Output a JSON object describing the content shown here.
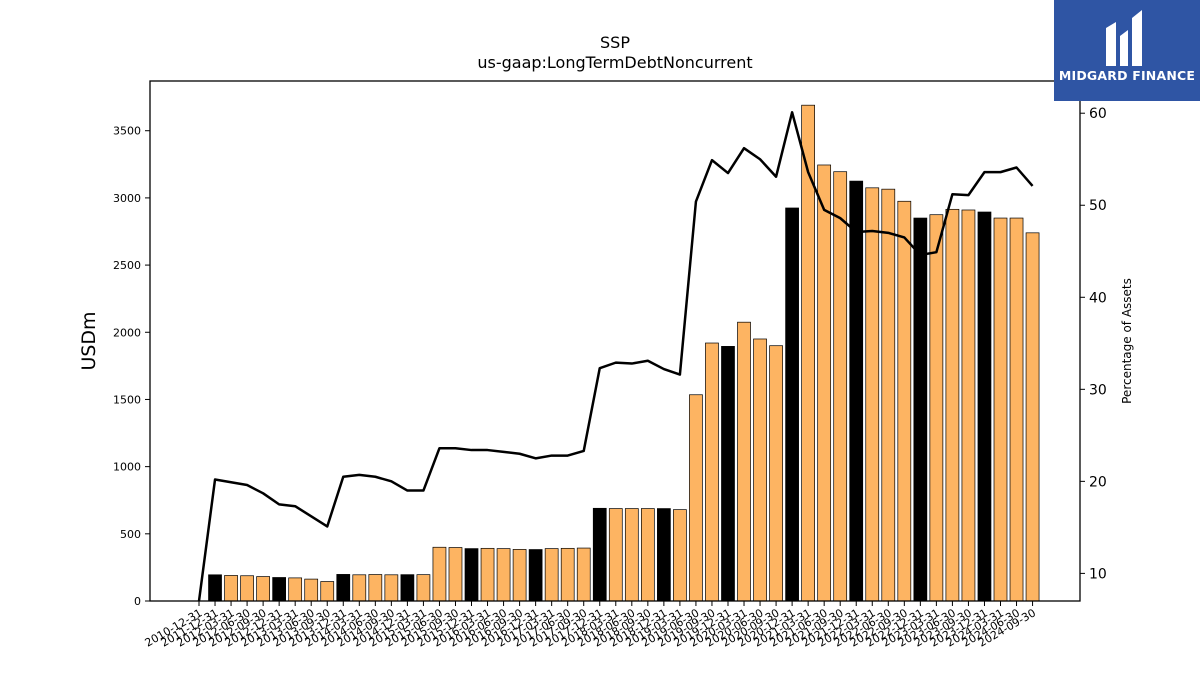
{
  "chart_data": {
    "type": "bar",
    "title": "SSP",
    "subtitle": "us-gaap:LongTermDebtNoncurrent",
    "ylabel": "USDm",
    "y2label": "Percentage of Assets",
    "ylim": [
      0,
      3870
    ],
    "y2lim": [
      7,
      63.5
    ],
    "yticks": [
      0,
      500,
      1000,
      1500,
      2000,
      2500,
      3000,
      3500
    ],
    "y2ticks": [
      10,
      20,
      30,
      40,
      50,
      60
    ],
    "grid": false,
    "categories": [
      "2010-12-31",
      "2011-12-31",
      "2012-03-31",
      "2012-06-30",
      "2012-09-30",
      "2012-12-31",
      "2013-03-31",
      "2013-06-30",
      "2013-09-30",
      "2013-12-31",
      "2014-03-31",
      "2014-06-30",
      "2014-09-30",
      "2014-12-31",
      "2015-03-31",
      "2015-06-30",
      "2015-09-30",
      "2015-12-31",
      "2016-03-31",
      "2016-06-30",
      "2016-09-30",
      "2016-12-31",
      "2017-03-31",
      "2017-06-30",
      "2017-09-30",
      "2017-12-31",
      "2018-03-31",
      "2018-06-30",
      "2018-09-30",
      "2018-12-31",
      "2019-03-31",
      "2019-06-30",
      "2019-09-30",
      "2019-12-31",
      "2020-03-31",
      "2020-06-30",
      "2020-09-30",
      "2020-12-31",
      "2021-03-31",
      "2021-06-30",
      "2021-09-30",
      "2021-12-31",
      "2022-03-31",
      "2022-06-30",
      "2022-09-30",
      "2022-12-31",
      "2023-03-31",
      "2023-06-30",
      "2023-09-30",
      "2023-12-31",
      "2024-03-31",
      "2024-06-30",
      "2024-09-30"
    ],
    "series": [
      {
        "kind": "bar",
        "values": [
          0,
          195,
          190,
          188,
          182,
          175,
          172,
          163,
          145,
          198,
          195,
          197,
          195,
          196,
          196,
          400,
          398,
          390,
          392,
          390,
          384,
          383,
          390,
          392,
          394,
          690,
          688,
          688,
          688,
          688,
          680,
          1535,
          1920,
          1895,
          2075,
          1950,
          1900,
          2925,
          3690,
          3245,
          3195,
          3125,
          3075,
          3065,
          2975,
          2850,
          2875,
          2915,
          2910,
          2895,
          2850,
          2850,
          2740
        ],
        "colors": [
          "#fdb462",
          "#000000",
          "#fdb462",
          "#fdb462",
          "#fdb462",
          "#000000",
          "#fdb462",
          "#fdb462",
          "#fdb462",
          "#000000",
          "#fdb462",
          "#fdb462",
          "#fdb462",
          "#000000",
          "#fdb462",
          "#fdb462",
          "#fdb462",
          "#000000",
          "#fdb462",
          "#fdb462",
          "#fdb462",
          "#000000",
          "#fdb462",
          "#fdb462",
          "#fdb462",
          "#000000",
          "#fdb462",
          "#fdb462",
          "#fdb462",
          "#000000",
          "#fdb462",
          "#fdb462",
          "#fdb462",
          "#000000",
          "#fdb462",
          "#fdb462",
          "#fdb462",
          "#000000",
          "#fdb462",
          "#fdb462",
          "#fdb462",
          "#000000",
          "#fdb462",
          "#fdb462",
          "#fdb462",
          "#000000",
          "#fdb462",
          "#fdb462",
          "#fdb462",
          "#000000",
          "#fdb462",
          "#fdb462",
          "#fdb462"
        ]
      },
      {
        "kind": "line",
        "axis": "right",
        "color": "#000000",
        "values": [
          7.0,
          20.2,
          19.9,
          19.6,
          18.7,
          17.5,
          17.3,
          16.2,
          15.1,
          20.5,
          20.7,
          20.5,
          20.0,
          19.0,
          19.0,
          23.6,
          23.6,
          23.4,
          23.4,
          23.2,
          23.0,
          22.5,
          22.8,
          22.8,
          23.3,
          32.3,
          32.9,
          32.8,
          33.1,
          32.2,
          31.6,
          50.4,
          54.9,
          53.5,
          56.2,
          55.0,
          53.1,
          60.1,
          53.6,
          49.5,
          48.6,
          47.1,
          47.2,
          47.0,
          46.5,
          44.6,
          44.9,
          51.2,
          51.1,
          53.6,
          53.6,
          54.1,
          52.1
        ]
      }
    ]
  },
  "logo": {
    "text": "MIDGARD FINANCE",
    "background": "#2f55a4"
  }
}
